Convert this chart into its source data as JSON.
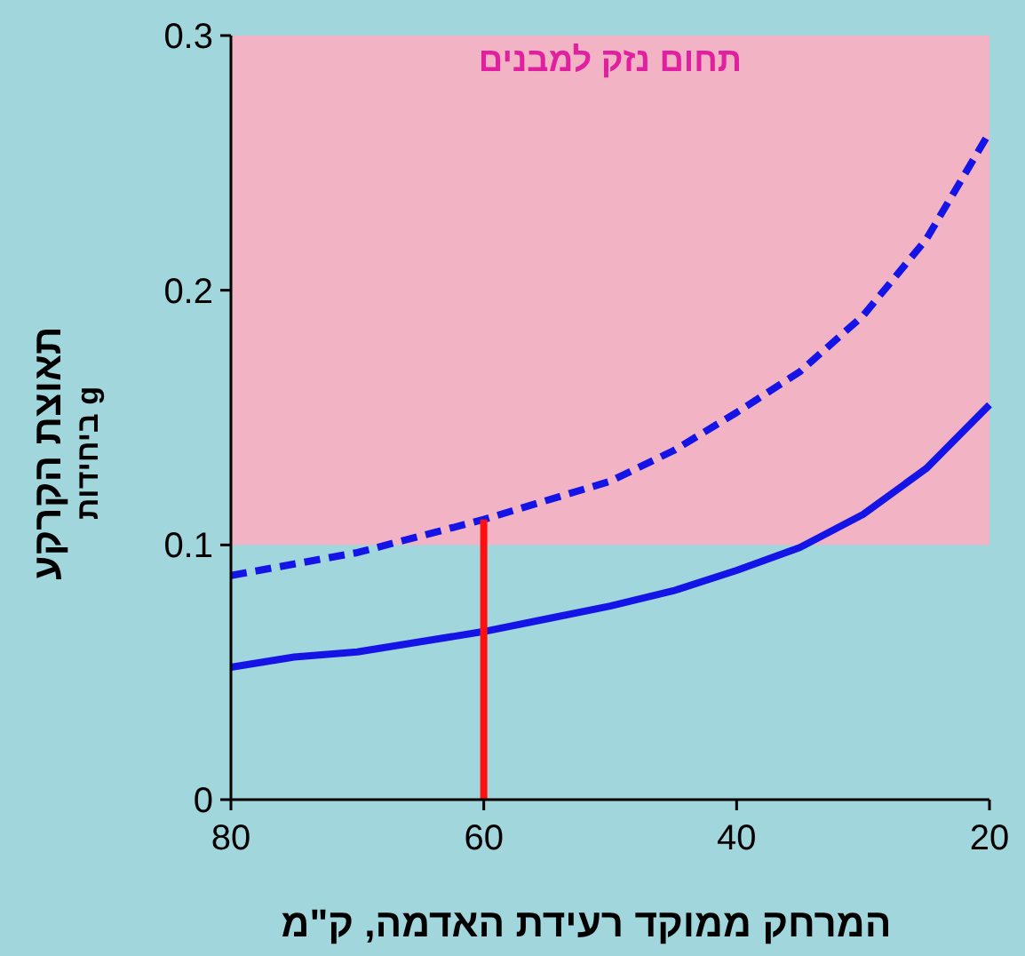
{
  "chart_data": {
    "type": "line",
    "xlabel": "המרחק ממוקד רעידת האדמה, ק\"מ",
    "ylabel": "תאוצת הקרקע",
    "annotations": [
      "ביחידות g"
    ],
    "xlim": [
      80,
      20
    ],
    "ylim": [
      0,
      0.3
    ],
    "xticks": [
      80,
      60,
      40,
      20
    ],
    "yticks": [
      0,
      0.1,
      0.2,
      0.3
    ],
    "bands": [
      {
        "axis": "y",
        "from": 0.1,
        "to": 0.3,
        "label": "תחום נזק למבנים",
        "color": "#f2b4c4"
      }
    ],
    "series": [
      {
        "x": [
          80,
          75,
          70,
          65,
          60,
          55,
          50,
          45,
          40,
          35,
          30,
          25,
          20
        ],
        "values": [
          0.052,
          0.056,
          0.058,
          0.062,
          0.066,
          0.071,
          0.076,
          0.082,
          0.09,
          0.099,
          0.112,
          0.13,
          0.155
        ],
        "color": "#1414e6",
        "line_style": "solid"
      },
      {
        "x": [
          80,
          70,
          60,
          50,
          45,
          40,
          35,
          30,
          25,
          20
        ],
        "values": [
          0.088,
          0.097,
          0.11,
          0.125,
          0.137,
          0.152,
          0.168,
          0.19,
          0.22,
          0.262
        ],
        "color": "#1414e6",
        "line_style": "dashed"
      },
      {
        "x": [
          60,
          60
        ],
        "values": [
          0,
          0.11
        ],
        "color": "#ff1010",
        "line_style": "solid"
      }
    ]
  }
}
